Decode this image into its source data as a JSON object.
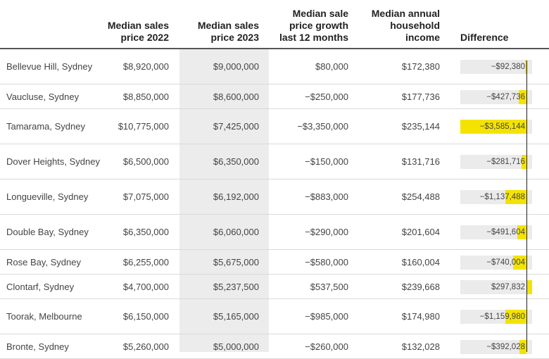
{
  "header": {
    "col1": "Median sales price 2022",
    "col2": "Median sales price 2023",
    "col3": "Median sale price growth last 12 months",
    "col4": "Median annual household income",
    "col5": "Difference"
  },
  "colors": {
    "highlight": "#ececed",
    "bar": "#f4e300",
    "track": "#ebebeb"
  },
  "rows": [
    {
      "suburb": "Bellevue Hill, Sydney",
      "p2022": "$8,920,000",
      "p2023": "$9,000,000",
      "growth": "$80,000",
      "income": "$172,380",
      "diff_label": "−$92,380",
      "diff": -92380
    },
    {
      "suburb": "Vaucluse, Sydney",
      "p2022": "$8,850,000",
      "p2023": "$8,600,000",
      "growth": "−$250,000",
      "income": "$177,736",
      "diff_label": "−$427,736",
      "diff": -427736
    },
    {
      "suburb": "Tamarama, Sydney",
      "p2022": "$10,775,000",
      "p2023": "$7,425,000",
      "growth": "−$3,350,000",
      "income": "$235,144",
      "diff_label": "−$3,585,144",
      "diff": -3585144
    },
    {
      "suburb": "Dover Heights, Sydney",
      "p2022": "$6,500,000",
      "p2023": "$6,350,000",
      "growth": "−$150,000",
      "income": "$131,716",
      "diff_label": "−$281,716",
      "diff": -281716
    },
    {
      "suburb": "Longueville, Sydney",
      "p2022": "$7,075,000",
      "p2023": "$6,192,000",
      "growth": "−$883,000",
      "income": "$254,488",
      "diff_label": "−$1,137,488",
      "diff": -1137488
    },
    {
      "suburb": "Double Bay, Sydney",
      "p2022": "$6,350,000",
      "p2023": "$6,060,000",
      "growth": "−$290,000",
      "income": "$201,604",
      "diff_label": "−$491,604",
      "diff": -491604
    },
    {
      "suburb": "Rose Bay, Sydney",
      "p2022": "$6,255,000",
      "p2023": "$5,675,000",
      "growth": "−$580,000",
      "income": "$160,004",
      "diff_label": "−$740,004",
      "diff": -740004
    },
    {
      "suburb": "Clontarf, Sydney",
      "p2022": "$4,700,000",
      "p2023": "$5,237,500",
      "growth": "$537,500",
      "income": "$239,668",
      "diff_label": "$297,832",
      "diff": 297832
    },
    {
      "suburb": "Toorak, Melbourne",
      "p2022": "$6,150,000",
      "p2023": "$5,165,000",
      "growth": "−$985,000",
      "income": "$174,980",
      "diff_label": "−$1,159,980",
      "diff": -1159980
    },
    {
      "suburb": "Bronte, Sydney",
      "p2022": "$5,260,000",
      "p2023": "$5,000,000",
      "growth": "−$260,000",
      "income": "$132,028",
      "diff_label": "−$392,028",
      "diff": -392028
    }
  ]
}
